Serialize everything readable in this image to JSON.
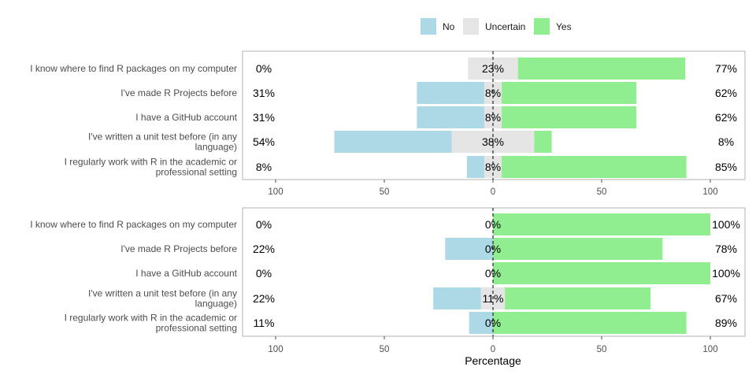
{
  "legend": {
    "items": [
      {
        "label": "No",
        "color": "#add8e6"
      },
      {
        "label": "Uncertain",
        "color": "#e5e5e5"
      },
      {
        "label": "Yes",
        "color": "#90ee90"
      }
    ]
  },
  "chart_data": {
    "type": "bar",
    "subtype": "diverging-stacked-likert",
    "xlabel": "Percentage",
    "xlim": [
      -100,
      100
    ],
    "xticks": [
      -100,
      -50,
      0,
      50,
      100
    ],
    "xtick_labels": [
      "100",
      "50",
      "0",
      "50",
      "100"
    ],
    "series_colors": {
      "No": "#add8e6",
      "Uncertain": "#e5e5e5",
      "Yes": "#90ee90"
    },
    "panels": [
      {
        "categories": [
          "I know where to find R packages on my computer",
          "I've made R Projects before",
          "I have a GitHub account",
          "I've written a unit test before (in any language)",
          "I regularly work with R in the academic or professional setting"
        ],
        "no": [
          0,
          31,
          31,
          54,
          8
        ],
        "uncertain": [
          23,
          8,
          8,
          38,
          8
        ],
        "yes": [
          77,
          62,
          62,
          8,
          85
        ],
        "no_labels": [
          "0%",
          "31%",
          "31%",
          "54%",
          "8%"
        ],
        "uncertain_labels": [
          "23%",
          "8%",
          "8%",
          "38%",
          "8%"
        ],
        "yes_labels": [
          "77%",
          "62%",
          "62%",
          "8%",
          "85%"
        ]
      },
      {
        "categories": [
          "I know where to find R packages on my computer",
          "I've made R Projects before",
          "I have a GitHub account",
          "I've written a unit test before (in any language)",
          "I regularly work with R in the academic or professional setting"
        ],
        "no": [
          0,
          22,
          0,
          22,
          11
        ],
        "uncertain": [
          0,
          0,
          0,
          11,
          0
        ],
        "yes": [
          100,
          78,
          100,
          67,
          89
        ],
        "no_labels": [
          "0%",
          "22%",
          "0%",
          "22%",
          "11%"
        ],
        "uncertain_labels": [
          "0%",
          "0%",
          "0%",
          "11%",
          "0%"
        ],
        "yes_labels": [
          "100%",
          "78%",
          "100%",
          "67%",
          "89%"
        ]
      }
    ]
  }
}
